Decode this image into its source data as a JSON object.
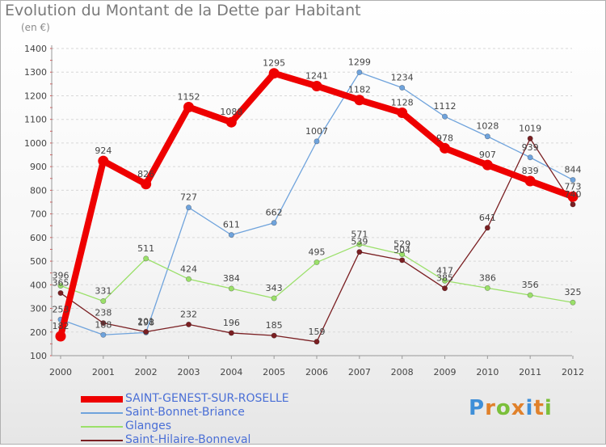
{
  "header": {
    "title": "Evolution du Montant de la Dette par Habitant",
    "unit": "(en €)"
  },
  "brand": {
    "letters": [
      "P",
      "r",
      "o",
      "x",
      "i",
      "t",
      "i"
    ],
    "colors": [
      "#3f8fd8",
      "#e0812b",
      "#7bbf3a",
      "#e0812b",
      "#3f8fd8",
      "#e0812b",
      "#7bbf3a"
    ]
  },
  "chart_data": {
    "type": "line",
    "title": "Evolution du Montant de la Dette par Habitant",
    "ylabel": "(en €)",
    "xlabel": "",
    "x": [
      "2000",
      "2001",
      "2002",
      "2003",
      "2004",
      "2005",
      "2006",
      "2007",
      "2008",
      "2009",
      "2010",
      "2011",
      "2012"
    ],
    "ylim": [
      100,
      1400
    ],
    "yticks": [
      100,
      200,
      300,
      400,
      500,
      600,
      700,
      800,
      900,
      1000,
      1100,
      1200,
      1300,
      1400
    ],
    "grid": true,
    "legend_position": "bottom-left",
    "series": [
      {
        "name": "SAINT-GENEST-SUR-ROSELLE",
        "color": "#ee0000",
        "emphasis": "bold",
        "values": [
          182,
          924,
          826,
          1152,
          1088,
          1295,
          1241,
          1182,
          1128,
          978,
          907,
          839,
          773
        ]
      },
      {
        "name": "Saint-Bonnet-Briance",
        "color": "#6fa3dc",
        "emphasis": "normal",
        "values": [
          253,
          188,
          198,
          727,
          611,
          662,
          1007,
          1299,
          1234,
          1112,
          1028,
          939,
          844
        ]
      },
      {
        "name": "Glanges",
        "color": "#9be06a",
        "emphasis": "normal",
        "values": [
          396,
          331,
          511,
          424,
          384,
          343,
          495,
          571,
          529,
          417,
          386,
          356,
          325
        ]
      },
      {
        "name": "Saint-Hilaire-Bonneval",
        "color": "#7a1f22",
        "emphasis": "normal",
        "values": [
          365,
          238,
          201,
          232,
          196,
          185,
          159,
          539,
          504,
          385,
          641,
          1019,
          740
        ]
      }
    ]
  }
}
